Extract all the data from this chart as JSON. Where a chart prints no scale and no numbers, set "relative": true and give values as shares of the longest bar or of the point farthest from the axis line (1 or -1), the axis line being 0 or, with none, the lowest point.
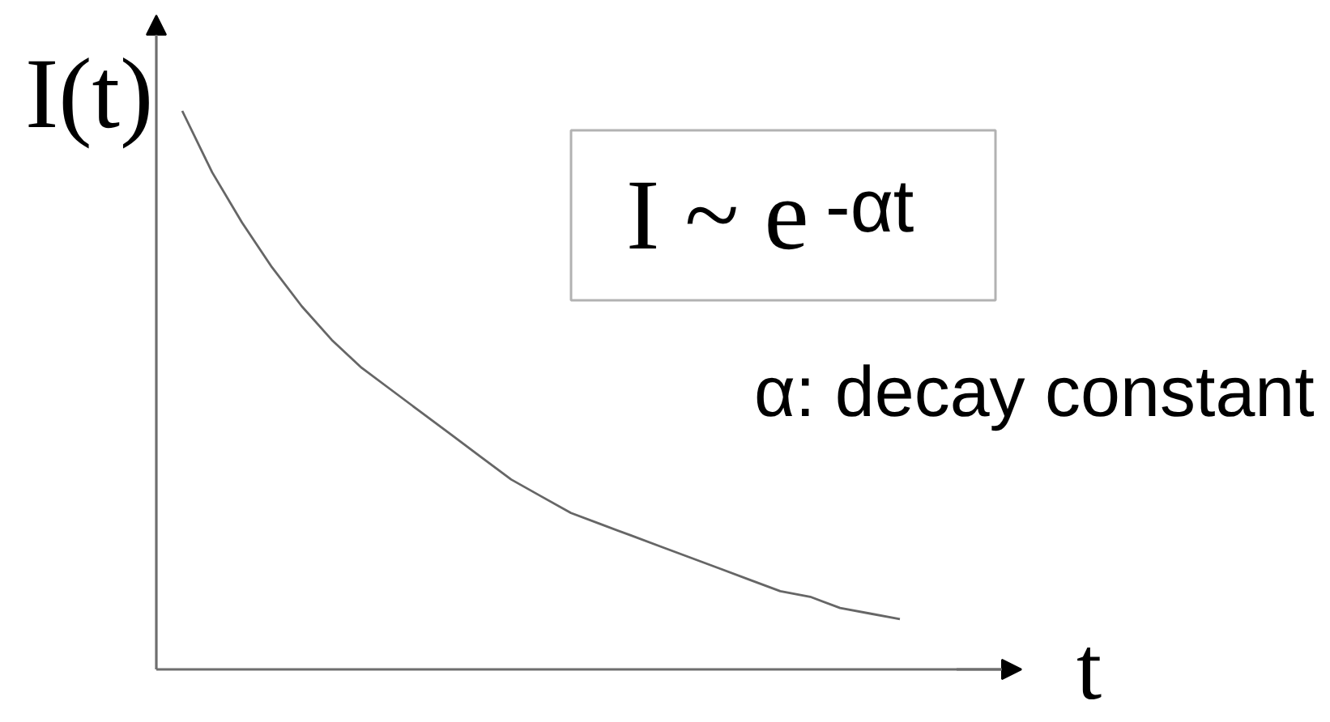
{
  "chart_data": {
    "type": "line",
    "relative": true,
    "xlabel": "t",
    "ylabel": "I(t)",
    "annotations": [
      "I ~ e$^{-αt}$",
      "α: decay constant"
    ],
    "categories": [
      null,
      null,
      null,
      null,
      null,
      null,
      null,
      null,
      null,
      null,
      null,
      null,
      null,
      null,
      null,
      null,
      null,
      null,
      null,
      null,
      null,
      null,
      null,
      null,
      null
    ],
    "grid": false,
    "color": "#666666",
    "values": [
      1,
      0.89,
      0.8,
      0.72,
      0.65,
      0.59,
      0.54,
      0.5,
      0.46,
      0.42,
      0.38,
      0.34,
      0.31,
      0.28,
      0.26,
      0.24,
      0.22,
      0.2,
      0.18,
      0.16,
      0.14,
      0.13,
      0.11,
      0.1,
      0.09
    ]
  }
}
